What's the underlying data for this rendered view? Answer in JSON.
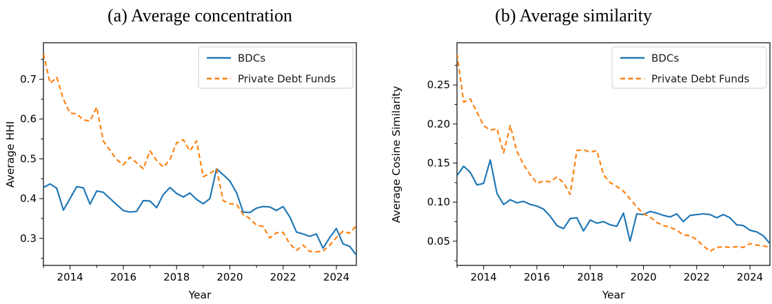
{
  "chart_data": [
    {
      "type": "line",
      "title": "(a) Average concentration",
      "xlabel": "Year",
      "ylabel": "Average HHI",
      "grid": false,
      "legend_position": "upper right",
      "xlim": [
        2013.0,
        2024.75
      ],
      "ylim": [
        0.232,
        0.792
      ],
      "xticks": [
        2014,
        2016,
        2018,
        2020,
        2022,
        2024
      ],
      "xtick_labels": [
        "2014",
        "2016",
        "2018",
        "2020",
        "2022",
        "2024"
      ],
      "yticks": [
        0.3,
        0.4,
        0.5,
        0.6,
        0.7
      ],
      "ytick_labels": [
        "0.3",
        "0.4",
        "0.5",
        "0.6",
        "0.7"
      ],
      "x": [
        2013.0,
        2013.25,
        2013.5,
        2013.75,
        2014.0,
        2014.25,
        2014.5,
        2014.75,
        2015.0,
        2015.25,
        2015.5,
        2015.75,
        2016.0,
        2016.25,
        2016.5,
        2016.75,
        2017.0,
        2017.25,
        2017.5,
        2017.75,
        2018.0,
        2018.25,
        2018.5,
        2018.75,
        2019.0,
        2019.25,
        2019.5,
        2019.75,
        2020.0,
        2020.25,
        2020.5,
        2020.75,
        2021.0,
        2021.25,
        2021.5,
        2021.75,
        2022.0,
        2022.25,
        2022.5,
        2022.75,
        2023.0,
        2023.25,
        2023.5,
        2023.75,
        2024.0,
        2024.25,
        2024.5,
        2024.75
      ],
      "series": [
        {
          "name": "BDCs",
          "color": "#1f77b4",
          "style": "solid",
          "values": [
            0.428,
            0.437,
            0.426,
            0.371,
            0.4,
            0.43,
            0.427,
            0.386,
            0.419,
            0.416,
            0.4,
            0.385,
            0.37,
            0.366,
            0.368,
            0.395,
            0.394,
            0.377,
            0.41,
            0.428,
            0.413,
            0.404,
            0.414,
            0.398,
            0.387,
            0.4,
            0.475,
            0.46,
            0.444,
            0.415,
            0.366,
            0.365,
            0.376,
            0.38,
            0.379,
            0.37,
            0.38,
            0.354,
            0.316,
            0.311,
            0.305,
            0.311,
            0.275,
            0.302,
            0.325,
            0.286,
            0.28,
            0.258
          ]
        },
        {
          "name": "Private Debt Funds",
          "color": "#ff7f0e",
          "style": "dashed",
          "values": [
            0.765,
            0.69,
            0.705,
            0.65,
            0.615,
            0.613,
            0.598,
            0.595,
            0.63,
            0.545,
            0.521,
            0.498,
            0.485,
            0.504,
            0.49,
            0.475,
            0.52,
            0.496,
            0.479,
            0.498,
            0.54,
            0.548,
            0.52,
            0.545,
            0.455,
            0.463,
            0.475,
            0.395,
            0.387,
            0.386,
            0.36,
            0.35,
            0.333,
            0.33,
            0.301,
            0.314,
            0.315,
            0.286,
            0.27,
            0.283,
            0.267,
            0.266,
            0.268,
            0.283,
            0.302,
            0.318,
            0.313,
            0.332
          ]
        }
      ]
    },
    {
      "type": "line",
      "title": "(b) Average similarity",
      "xlabel": "Year",
      "ylabel": "Average Cosine Similarity",
      "grid": false,
      "legend_position": "upper right",
      "xlim": [
        2013.0,
        2024.75
      ],
      "ylim": [
        0.019,
        0.304
      ],
      "xticks": [
        2014,
        2016,
        2018,
        2020,
        2022,
        2024
      ],
      "xtick_labels": [
        "2014",
        "2016",
        "2018",
        "2020",
        "2022",
        "2024"
      ],
      "yticks": [
        0.05,
        0.1,
        0.15,
        0.2,
        0.25
      ],
      "ytick_labels": [
        "0.05",
        "0.10",
        "0.15",
        "0.20",
        "0.25"
      ],
      "x": [
        2013.0,
        2013.25,
        2013.5,
        2013.75,
        2014.0,
        2014.25,
        2014.5,
        2014.75,
        2015.0,
        2015.25,
        2015.5,
        2015.75,
        2016.0,
        2016.25,
        2016.5,
        2016.75,
        2017.0,
        2017.25,
        2017.5,
        2017.75,
        2018.0,
        2018.25,
        2018.5,
        2018.75,
        2019.0,
        2019.25,
        2019.5,
        2019.75,
        2020.0,
        2020.25,
        2020.5,
        2020.75,
        2021.0,
        2021.25,
        2021.5,
        2021.75,
        2022.0,
        2022.25,
        2022.5,
        2022.75,
        2023.0,
        2023.25,
        2023.5,
        2023.75,
        2024.0,
        2024.25,
        2024.5,
        2024.75
      ],
      "series": [
        {
          "name": "BDCs",
          "color": "#1f77b4",
          "style": "solid",
          "values": [
            0.134,
            0.146,
            0.138,
            0.122,
            0.124,
            0.154,
            0.111,
            0.097,
            0.103,
            0.099,
            0.101,
            0.097,
            0.095,
            0.091,
            0.082,
            0.07,
            0.066,
            0.079,
            0.08,
            0.063,
            0.077,
            0.073,
            0.075,
            0.071,
            0.069,
            0.086,
            0.05,
            0.085,
            0.084,
            0.088,
            0.086,
            0.083,
            0.081,
            0.085,
            0.075,
            0.083,
            0.084,
            0.085,
            0.084,
            0.08,
            0.084,
            0.08,
            0.071,
            0.07,
            0.064,
            0.062,
            0.057,
            0.047
          ]
        },
        {
          "name": "Private Debt Funds",
          "color": "#ff7f0e",
          "style": "dashed",
          "values": [
            0.29,
            0.228,
            0.232,
            0.215,
            0.198,
            0.192,
            0.194,
            0.163,
            0.198,
            0.165,
            0.148,
            0.135,
            0.124,
            0.127,
            0.126,
            0.132,
            0.125,
            0.11,
            0.166,
            0.167,
            0.164,
            0.166,
            0.135,
            0.125,
            0.12,
            0.114,
            0.104,
            0.094,
            0.085,
            0.081,
            0.074,
            0.07,
            0.068,
            0.064,
            0.058,
            0.057,
            0.052,
            0.044,
            0.037,
            0.042,
            0.043,
            0.042,
            0.043,
            0.042,
            0.047,
            0.045,
            0.044,
            0.042
          ]
        }
      ]
    }
  ]
}
